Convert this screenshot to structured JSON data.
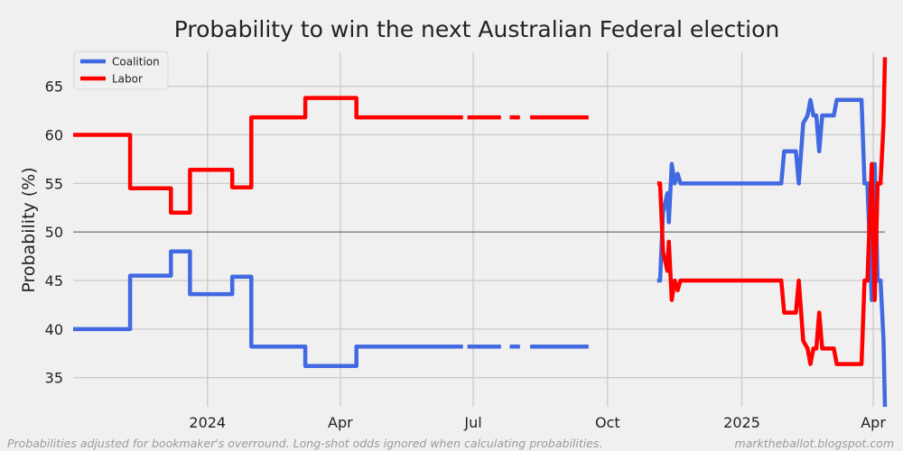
{
  "chart_data": {
    "type": "line",
    "title": "Probability to win the next Australian Federal election",
    "ylabel": "Probability (%)",
    "xlabel": "",
    "x_ticks": [
      "2024",
      "Apr",
      "Jul",
      "Oct",
      "2025",
      "Apr"
    ],
    "y_ticks": [
      "35",
      "40",
      "45",
      "50",
      "55",
      "60",
      "65"
    ],
    "xlim": [
      "2023-10-01",
      "2025-04-09"
    ],
    "ylim": [
      32,
      68.5
    ],
    "reference_line": 50,
    "grid": true,
    "legend_position": "top-left",
    "series": [
      {
        "name": "Coalition",
        "color": "#4169e1",
        "segments": [
          [
            [
              "2023-10-01",
              40.0
            ],
            [
              "2023-11-09",
              40.0
            ],
            [
              "2023-11-09",
              45.5
            ],
            [
              "2023-12-07",
              45.5
            ],
            [
              "2023-12-07",
              48.0
            ],
            [
              "2023-12-20",
              48.0
            ],
            [
              "2023-12-20",
              43.6
            ],
            [
              "2024-01-18",
              43.6
            ],
            [
              "2024-01-18",
              45.4
            ],
            [
              "2024-01-31",
              45.4
            ],
            [
              "2024-01-31",
              38.2
            ],
            [
              "2024-03-08",
              38.2
            ],
            [
              "2024-03-08",
              36.2
            ],
            [
              "2024-04-12",
              36.2
            ],
            [
              "2024-04-12",
              38.2
            ],
            [
              "2024-06-24",
              38.2
            ]
          ],
          [
            [
              "2024-06-27",
              38.2
            ],
            [
              "2024-07-20",
              38.2
            ]
          ],
          [
            [
              "2024-07-26",
              38.2
            ],
            [
              "2024-08-02",
              38.2
            ]
          ],
          [
            [
              "2024-08-09",
              38.2
            ],
            [
              "2024-09-18",
              38.2
            ]
          ],
          [
            [
              "2024-11-04",
              45.0
            ],
            [
              "2024-11-06",
              45.0
            ],
            [
              "2024-11-08",
              52.0
            ],
            [
              "2024-11-11",
              54.0
            ],
            [
              "2024-11-12",
              51.0
            ],
            [
              "2024-11-14",
              57.0
            ],
            [
              "2024-11-16",
              55.0
            ],
            [
              "2024-11-18",
              56.0
            ],
            [
              "2024-11-20",
              55.0
            ],
            [
              "2025-01-28",
              55.0
            ],
            [
              "2025-01-30",
              58.3
            ],
            [
              "2025-02-07",
              58.3
            ],
            [
              "2025-02-09",
              55.0
            ],
            [
              "2025-02-12",
              61.2
            ],
            [
              "2025-02-15",
              62.0
            ],
            [
              "2025-02-17",
              63.6
            ],
            [
              "2025-02-19",
              62.0
            ],
            [
              "2025-02-21",
              62.0
            ],
            [
              "2025-02-23",
              58.3
            ],
            [
              "2025-02-25",
              62.0
            ],
            [
              "2025-03-05",
              62.0
            ],
            [
              "2025-03-07",
              63.6
            ],
            [
              "2025-03-24",
              63.6
            ],
            [
              "2025-03-26",
              55.0
            ],
            [
              "2025-03-28",
              55.0
            ],
            [
              "2025-03-31",
              43.0
            ],
            [
              "2025-04-02",
              57.0
            ],
            [
              "2025-04-04",
              45.0
            ],
            [
              "2025-04-06",
              45.0
            ],
            [
              "2025-04-08",
              39.0
            ],
            [
              "2025-04-09",
              32.0
            ]
          ]
        ]
      },
      {
        "name": "Labor",
        "color": "#ff0000",
        "segments": [
          [
            [
              "2023-10-01",
              60.0
            ],
            [
              "2023-11-09",
              60.0
            ],
            [
              "2023-11-09",
              54.5
            ],
            [
              "2023-12-07",
              54.5
            ],
            [
              "2023-12-07",
              52.0
            ],
            [
              "2023-12-20",
              52.0
            ],
            [
              "2023-12-20",
              56.4
            ],
            [
              "2024-01-18",
              56.4
            ],
            [
              "2024-01-18",
              54.6
            ],
            [
              "2024-01-31",
              54.6
            ],
            [
              "2024-01-31",
              61.8
            ],
            [
              "2024-03-08",
              61.8
            ],
            [
              "2024-03-08",
              63.8
            ],
            [
              "2024-04-12",
              63.8
            ],
            [
              "2024-04-12",
              61.8
            ],
            [
              "2024-06-24",
              61.8
            ]
          ],
          [
            [
              "2024-06-27",
              61.8
            ],
            [
              "2024-07-20",
              61.8
            ]
          ],
          [
            [
              "2024-07-26",
              61.8
            ],
            [
              "2024-08-02",
              61.8
            ]
          ],
          [
            [
              "2024-08-09",
              61.8
            ],
            [
              "2024-09-18",
              61.8
            ]
          ],
          [
            [
              "2024-11-04",
              55.0
            ],
            [
              "2024-11-06",
              55.0
            ],
            [
              "2024-11-08",
              48.0
            ],
            [
              "2024-11-11",
              46.0
            ],
            [
              "2024-11-12",
              49.0
            ],
            [
              "2024-11-14",
              43.0
            ],
            [
              "2024-11-16",
              45.0
            ],
            [
              "2024-11-18",
              44.0
            ],
            [
              "2024-11-20",
              45.0
            ],
            [
              "2025-01-28",
              45.0
            ],
            [
              "2025-01-30",
              41.7
            ],
            [
              "2025-02-07",
              41.7
            ],
            [
              "2025-02-09",
              45.0
            ],
            [
              "2025-02-12",
              38.8
            ],
            [
              "2025-02-15",
              38.0
            ],
            [
              "2025-02-17",
              36.4
            ],
            [
              "2025-02-19",
              38.0
            ],
            [
              "2025-02-21",
              38.0
            ],
            [
              "2025-02-23",
              41.7
            ],
            [
              "2025-02-25",
              38.0
            ],
            [
              "2025-03-05",
              38.0
            ],
            [
              "2025-03-07",
              36.4
            ],
            [
              "2025-03-24",
              36.4
            ],
            [
              "2025-03-26",
              45.0
            ],
            [
              "2025-03-28",
              45.0
            ],
            [
              "2025-03-31",
              57.0
            ],
            [
              "2025-04-02",
              43.0
            ],
            [
              "2025-04-04",
              55.0
            ],
            [
              "2025-04-06",
              55.0
            ],
            [
              "2025-04-08",
              61.0
            ],
            [
              "2025-04-09",
              68.0
            ]
          ]
        ]
      }
    ]
  },
  "footnote": {
    "left": "Probabilities adjusted for bookmaker's overround. Long-shot odds ignored when calculating probabilities.",
    "right": "marktheballot.blogspot.com"
  }
}
